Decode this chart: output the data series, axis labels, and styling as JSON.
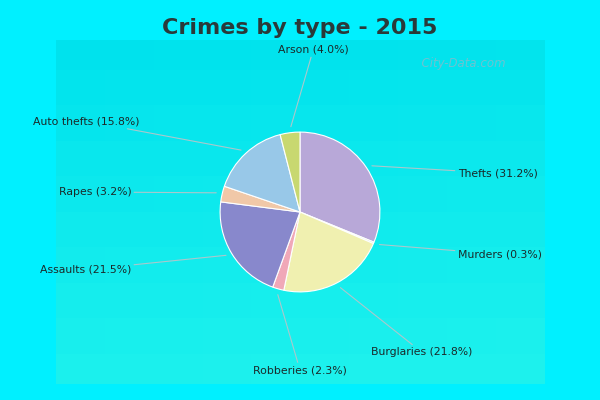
{
  "title": "Crimes by type - 2015",
  "title_fontsize": 16,
  "title_fontweight": "bold",
  "title_color": "#2a3a3a",
  "slices": [
    {
      "label": "Thefts (31.2%)",
      "value": 31.2,
      "color": "#b8a8d8"
    },
    {
      "label": "Murders (0.3%)",
      "value": 0.3,
      "color": "#c8d8c0"
    },
    {
      "label": "Burglaries (21.8%)",
      "value": 21.8,
      "color": "#f0f0b0"
    },
    {
      "label": "Robberies (2.3%)",
      "value": 2.3,
      "color": "#f0a8b8"
    },
    {
      "label": "Assaults (21.5%)",
      "value": 21.5,
      "color": "#8888cc"
    },
    {
      "label": "Rapes (3.2%)",
      "value": 3.2,
      "color": "#f0c8a8"
    },
    {
      "label": "Auto thefts (15.8%)",
      "value": 15.8,
      "color": "#98c8e8"
    },
    {
      "label": "Arson (4.0%)",
      "value": 4.0,
      "color": "#c8d870"
    }
  ],
  "cyan_border": "#00f0ff",
  "chart_bg_top_left": "#d0ece8",
  "chart_bg_bottom_right": "#e8f8e8",
  "figsize": [
    6.0,
    4.0
  ],
  "dpi": 100,
  "watermark": "  City-Data.com"
}
